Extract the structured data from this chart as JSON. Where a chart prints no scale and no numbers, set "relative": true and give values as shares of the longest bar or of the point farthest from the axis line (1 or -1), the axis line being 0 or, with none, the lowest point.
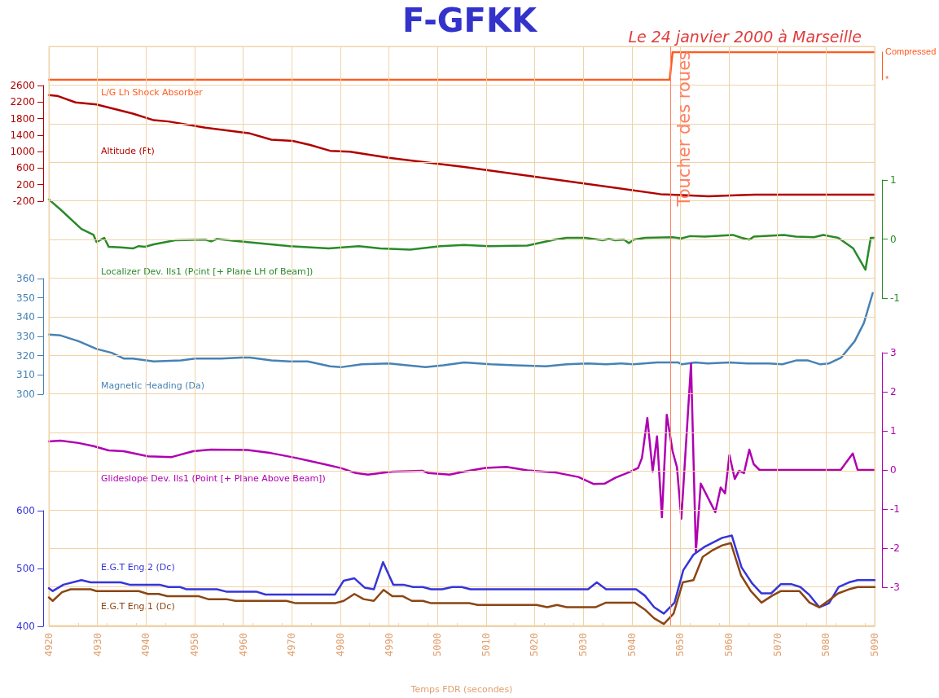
{
  "chart_data": [
    {
      "type": "line",
      "title": "F-GFKK",
      "subtitle": "Le 24 janvier 2000 à Marseille",
      "xlim": [
        4920,
        5090
      ],
      "relative": true,
      "annotations": [
        "Compressed",
        "*"
      ],
      "tick_labels": "y",
      "series": [
        {
          "name": "L/G Lh Shock Absorber",
          "axis": "y2",
          "color": "#ff5a1f",
          "x": [
            4920,
            5047.8,
            5048.4,
            5090
          ],
          "values": [
            0,
            0,
            1,
            1
          ]
        }
      ]
    },
    {
      "type": "line",
      "xlim": [
        4920,
        5090
      ],
      "ylim": [
        -200,
        2600
      ],
      "yticks": [
        -200,
        200,
        600,
        1000,
        1400,
        1800,
        2200,
        2600
      ],
      "tick_labels": "y",
      "series": [
        {
          "name": "Altitude (Ft)",
          "color": "#b00000",
          "x": [
            4920,
            4921.7,
            4925.5,
            4929.8,
            4937.3,
            4941.6,
            4944.6,
            4952.2,
            4961.4,
            4965.8,
            4970.2,
            4973.8,
            4977.9,
            4982,
            4990,
            5005.5,
            5045.9,
            5050.2,
            5055.8,
            5062.6,
            5065.4,
            5090
          ],
          "values": [
            2370,
            2350,
            2190,
            2140,
            1920,
            1760,
            1730,
            1580,
            1440,
            1290,
            1260,
            1160,
            1020,
            1000,
            850,
            630,
            -30,
            -50,
            -80,
            -50,
            -40,
            -40
          ]
        }
      ]
    },
    {
      "type": "line",
      "xlim": [
        4920,
        5090
      ],
      "y2lim": [
        -1,
        1
      ],
      "y2ticks": [
        -1,
        0,
        1
      ],
      "tick_labels": "y",
      "series": [
        {
          "name": "Localizer Dev. Ils1 (Pcint [+ Plane LH of Beam])",
          "axis": "y2",
          "color": "#2a8a2a",
          "x": [
            4920,
            4922.4,
            4926.7,
            4929.2,
            4929.8,
            4931.4,
            4932.3,
            4934.8,
            4937.3,
            4938.5,
            4939.8,
            4941.6,
            4946,
            4952.2,
            4953.4,
            4954.6,
            4959.6,
            4969.6,
            4977.6,
            4983.8,
            4988.2,
            4994.4,
            5000.6,
            5005.5,
            5010.5,
            5018.5,
            5024.1,
            5026.6,
            5030.4,
            5034,
            5035.3,
            5036.6,
            5038.4,
            5039.4,
            5040.4,
            5042.7,
            5048.4,
            5050.2,
            5052,
            5055,
            5060.8,
            5062.6,
            5064.2,
            5065.1,
            5071.3,
            5073.8,
            5077.5,
            5079.4,
            5082.5,
            5085.6,
            5088.1,
            5089.2,
            5090
          ],
          "values": [
            0.67,
            0.5,
            0.17,
            0.07,
            -0.05,
            0.02,
            -0.13,
            -0.14,
            -0.16,
            -0.12,
            -0.13,
            -0.09,
            -0.02,
            -0.01,
            -0.04,
            0,
            -0.04,
            -0.12,
            -0.16,
            -0.12,
            -0.16,
            -0.18,
            -0.12,
            -0.1,
            -0.12,
            -0.11,
            -0.01,
            0.02,
            0.02,
            -0.02,
            0,
            -0.02,
            -0.01,
            -0.07,
            -0.01,
            0.02,
            0.03,
            0.01,
            0.05,
            0.04,
            0.07,
            0.02,
            -0.01,
            0.04,
            0.07,
            0.04,
            0.03,
            0.07,
            0.02,
            -0.16,
            -0.52,
            0.02,
            0.02
          ]
        }
      ]
    },
    {
      "type": "line",
      "xlim": [
        4920,
        5090
      ],
      "ylim": [
        300,
        360
      ],
      "yticks": [
        300,
        310,
        320,
        330,
        340,
        350,
        360
      ],
      "tick_labels": "y",
      "series": [
        {
          "name": "Magnetic Heading (Da)",
          "color": "#4682b4",
          "x": [
            4920,
            4922.4,
            4926.1,
            4929.8,
            4932.9,
            4935.4,
            4937.3,
            4941.6,
            4947.2,
            4950.1,
            4955.5,
            4959.6,
            4961.4,
            4965.8,
            4969.5,
            4973.3,
            4977.9,
            4980.1,
            4984.4,
            4990,
            4997.5,
            5001.2,
            5005.5,
            5011,
            5016,
            5022.3,
            5026.6,
            5031,
            5034.7,
            5037.8,
            5040.3,
            5045.2,
            5049.5,
            5050.3,
            5053.1,
            5055.6,
            5060.1,
            5063.8,
            5068.2,
            5071,
            5073.8,
            5076.3,
            5078.8,
            5080.6,
            5083.1,
            5085.9,
            5087.8,
            5089.6
          ],
          "values": [
            331,
            330.5,
            327.5,
            323.5,
            321.5,
            318.5,
            318.5,
            317,
            317.5,
            318.5,
            318.5,
            319,
            319,
            317.5,
            317,
            317,
            314.5,
            314,
            315.5,
            316,
            314,
            315,
            316.5,
            315.5,
            315,
            314.5,
            315.5,
            316,
            315.5,
            316,
            315.5,
            316.5,
            316.5,
            315.5,
            316.5,
            316,
            316.5,
            316,
            316,
            315.5,
            317.5,
            317.5,
            315.5,
            316,
            319,
            327.5,
            337,
            352.5
          ]
        }
      ]
    },
    {
      "type": "line",
      "xlim": [
        4920,
        5090
      ],
      "y2lim": [
        -3,
        3
      ],
      "y2ticks": [
        -3,
        -2,
        -1,
        0,
        1,
        2,
        3
      ],
      "tick_labels": "y",
      "series": [
        {
          "name": "Glideslope Dev. Ils1 (Point [+ Plane Above Beam])",
          "axis": "y2",
          "color": "#b000b0",
          "x": [
            4920,
            4922.4,
            4926.1,
            4929.2,
            4932.3,
            4935.4,
            4940.4,
            4945.3,
            4949.7,
            4953.4,
            4960.9,
            4965.8,
            4970.8,
            4975.8,
            4980.1,
            4983.2,
            4985.7,
            4990.7,
            4996.9,
            4998.1,
            5002.5,
            5005.5,
            5009.9,
            5014.2,
            5018.5,
            5024.1,
            5029,
            5032.2,
            5034.4,
            5036.6,
            5039.4,
            5041.3,
            5042.1,
            5043.2,
            5044.3,
            5045.2,
            5046.2,
            5047.2,
            5048.4,
            5049.3,
            5050.2,
            5052.2,
            5053.2,
            5054.2,
            5057.2,
            5058.3,
            5059.2,
            5060.1,
            5061.2,
            5062.1,
            5063.1,
            5064.2,
            5065.1,
            5066.3,
            5083,
            5085.5,
            5086.5,
            5090
          ],
          "values": [
            0.73,
            0.75,
            0.69,
            0.61,
            0.5,
            0.48,
            0.35,
            0.33,
            0.48,
            0.52,
            0.51,
            0.43,
            0.31,
            0.17,
            0.05,
            -0.08,
            -0.12,
            -0.04,
            -0.02,
            -0.08,
            -0.12,
            -0.04,
            0.05,
            0.08,
            -0.01,
            -0.06,
            -0.18,
            -0.36,
            -0.35,
            -0.2,
            -0.06,
            0.05,
            0.31,
            1.33,
            -0.04,
            0.86,
            -1.21,
            1.41,
            0.48,
            0.07,
            -1.25,
            2.72,
            -2.1,
            -0.35,
            -1.08,
            -0.45,
            -0.6,
            0.38,
            -0.23,
            -0.02,
            -0.08,
            0.52,
            0.15,
            0,
            0,
            0.42,
            0,
            0
          ]
        }
      ]
    },
    {
      "type": "line",
      "xlabel": "Temps FDR (secondes)",
      "xlim": [
        4920,
        5090
      ],
      "xticks": [
        4920,
        4930,
        4940,
        4950,
        4960,
        4970,
        4980,
        4990,
        5000,
        5010,
        5020,
        5030,
        5040,
        5050,
        5060,
        5070,
        5080,
        5090
      ],
      "ylim": [
        400,
        600
      ],
      "yticks": [
        400,
        500,
        600
      ],
      "grid": true,
      "ref_lines": [
        {
          "axis": "x",
          "value": 5048,
          "label": "Toucher des roues",
          "color": "#ff8060"
        }
      ],
      "series": [
        {
          "name": "E.G.T Eng.2 (Dc)",
          "color": "#3535d8",
          "x": [
            4920,
            4920.8,
            4923,
            4926.7,
            4928.6,
            4934.8,
            4936.6,
            4942.8,
            4944.6,
            4947,
            4948.4,
            4954.6,
            4956.5,
            4962.7,
            4964.6,
            4978.9,
            4980.7,
            4982.9,
            4985,
            4986.9,
            4988.8,
            4990.9,
            4993,
            4995,
            4997,
            4998.7,
            5001,
            5003,
            5005,
            5006.8,
            5031,
            5032.8,
            5034.7,
            5040.9,
            5042.7,
            5044.6,
            5046.6,
            5048.8,
            5050.6,
            5052.7,
            5054.9,
            5058.6,
            5060.6,
            5062.6,
            5064.8,
            5066.7,
            5068.7,
            5070.7,
            5072.8,
            5074.7,
            5076.6,
            5078.6,
            5080.6,
            5082.6,
            5084.7,
            5086.5,
            5090
          ],
          "values": [
            466,
            461,
            472,
            480,
            476,
            476,
            472,
            472,
            468,
            468,
            464,
            464,
            460,
            460,
            455,
            455,
            479,
            483,
            467,
            464,
            511,
            472,
            472,
            468,
            468,
            464,
            464,
            468,
            468,
            464,
            464,
            476,
            464,
            464,
            453,
            433,
            422,
            441,
            497,
            524,
            537,
            553,
            557,
            502,
            474,
            457,
            457,
            473,
            473,
            468,
            454,
            433,
            440,
            468,
            476,
            480,
            480
          ]
        },
        {
          "name": "E.G.T Eng.1 (Dc)",
          "color": "#8b4513",
          "x": [
            4920,
            4920.8,
            4922.7,
            4924.5,
            4928.6,
            4929.8,
            4938.5,
            4940.4,
            4942.6,
            4944.4,
            4950.9,
            4952.8,
            4956.5,
            4958.4,
            4968.9,
            4970.8,
            4978.9,
            4980.7,
            4982.9,
            4984.8,
            4986.9,
            4988.9,
            4990.7,
            4992.9,
            4994.7,
            4997,
            4998.7,
            5006.5,
            5008.3,
            5020.4,
            5022.6,
            5024.6,
            5026.6,
            5032.5,
            5034.7,
            5040.6,
            5042.7,
            5044.6,
            5046.6,
            5048.6,
            5050.5,
            5052.7,
            5054.6,
            5056.7,
            5058.6,
            5060.4,
            5062.5,
            5064.5,
            5066.7,
            5068.9,
            5070.7,
            5074.5,
            5076.6,
            5078.6,
            5080.6,
            5082.5,
            5084.7,
            5086.5,
            5090
          ],
          "values": [
            450,
            444,
            459,
            464,
            464,
            461,
            461,
            456,
            456,
            452,
            452,
            447,
            447,
            444,
            444,
            440,
            440,
            444,
            456,
            447,
            444,
            463,
            452,
            452,
            444,
            444,
            440,
            440,
            437,
            437,
            433,
            437,
            433,
            433,
            441,
            441,
            429,
            414,
            404,
            422,
            476,
            480,
            520,
            532,
            540,
            544,
            488,
            461,
            441,
            453,
            461,
            461,
            441,
            433,
            445,
            457,
            464,
            468,
            468
          ]
        }
      ]
    }
  ]
}
